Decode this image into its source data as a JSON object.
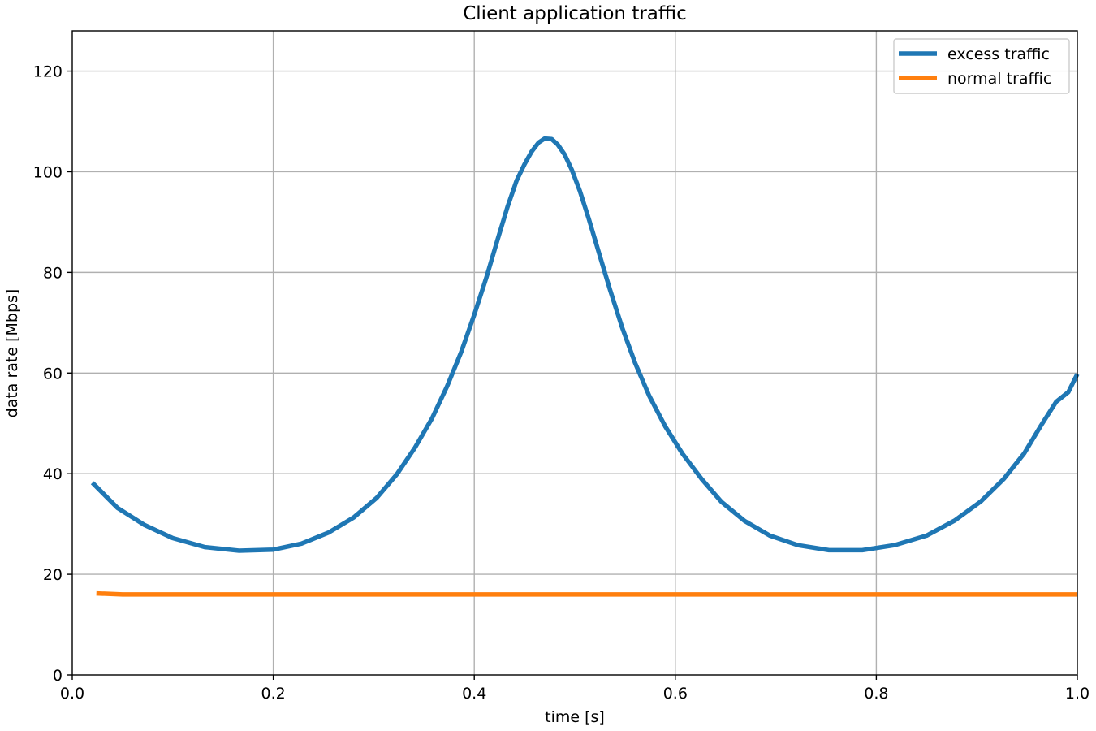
{
  "chart_data": {
    "type": "line",
    "title": "Client application traffic",
    "xlabel": "time [s]",
    "ylabel": "data rate [Mbps]",
    "xlim": [
      0.0,
      1.0
    ],
    "ylim": [
      0,
      128
    ],
    "xticks": [
      0.0,
      0.2,
      0.4,
      0.6,
      0.8,
      1.0
    ],
    "xtick_labels": [
      "0.0",
      "0.2",
      "0.4",
      "0.6",
      "0.8",
      "1.0"
    ],
    "yticks": [
      0,
      20,
      40,
      60,
      80,
      100,
      120
    ],
    "ytick_labels": [
      "0",
      "20",
      "40",
      "60",
      "80",
      "100",
      "120"
    ],
    "grid": true,
    "legend_position": "top-right",
    "series": [
      {
        "name": "excess traffic",
        "color": "#1f77b4",
        "x": [
          0.02,
          0.045,
          0.072,
          0.1,
          0.132,
          0.166,
          0.2,
          0.228,
          0.255,
          0.28,
          0.303,
          0.323,
          0.341,
          0.358,
          0.373,
          0.387,
          0.4,
          0.412,
          0.423,
          0.433,
          0.442,
          0.45,
          0.457,
          0.464,
          0.47,
          0.477,
          0.483,
          0.49,
          0.497,
          0.505,
          0.514,
          0.524,
          0.535,
          0.547,
          0.56,
          0.574,
          0.59,
          0.607,
          0.626,
          0.646,
          0.669,
          0.694,
          0.722,
          0.753,
          0.786,
          0.818,
          0.85,
          0.878,
          0.904,
          0.927,
          0.947,
          0.964,
          0.979,
          0.991,
          1.0
        ],
        "y": [
          38.2,
          33.2,
          29.8,
          27.2,
          25.4,
          24.7,
          24.9,
          26.1,
          28.3,
          31.3,
          35.2,
          39.9,
          45.2,
          51.0,
          57.4,
          64.2,
          71.6,
          79.0,
          86.4,
          93.0,
          98.2,
          101.5,
          104.0,
          105.8,
          106.6,
          106.5,
          105.4,
          103.4,
          100.4,
          96.2,
          90.6,
          83.9,
          76.6,
          69.1,
          62.0,
          55.5,
          49.4,
          44.0,
          39.0,
          34.4,
          30.6,
          27.7,
          25.8,
          24.8,
          24.8,
          25.8,
          27.7,
          30.7,
          34.5,
          39.0,
          44.0,
          49.6,
          54.3,
          56.2,
          59.8
        ]
      },
      {
        "name": "normal traffic",
        "color": "#ff7f0e",
        "x": [
          0.024,
          0.05,
          0.1,
          0.2,
          0.3,
          0.4,
          0.5,
          0.6,
          0.7,
          0.8,
          0.9,
          1.0
        ],
        "y": [
          16.2,
          16.0,
          16.0,
          16.0,
          16.0,
          16.0,
          16.0,
          16.0,
          16.0,
          16.0,
          16.0,
          16.0
        ]
      }
    ]
  }
}
